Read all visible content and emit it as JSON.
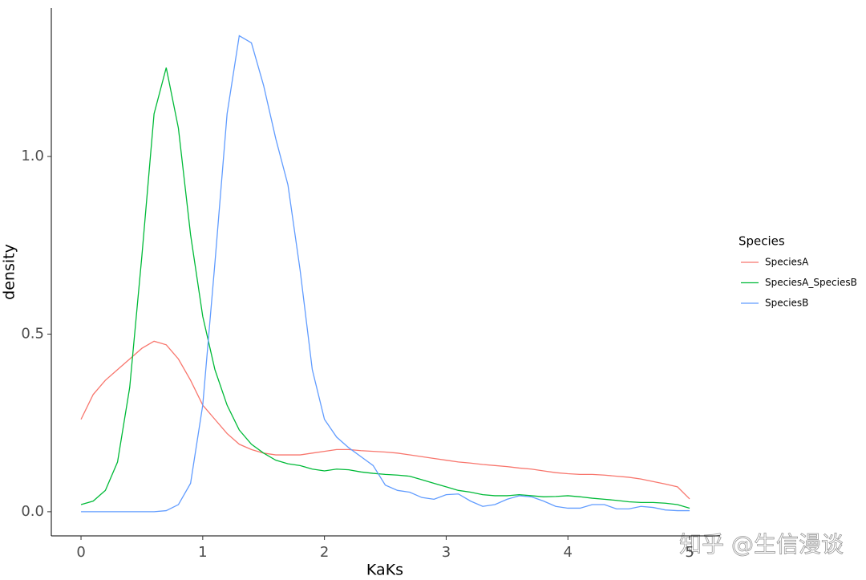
{
  "chart_data": {
    "type": "line",
    "x_label": "KaKs",
    "y_label": "density",
    "legend_title": "Species",
    "watermark": "知乎 @生信漫谈",
    "x": [
      0,
      0.1,
      0.2,
      0.3,
      0.4,
      0.5,
      0.6,
      0.7,
      0.8,
      0.9,
      1,
      1.1,
      1.2,
      1.3,
      1.4,
      1.5,
      1.6,
      1.7,
      1.8,
      1.9,
      2,
      2.1,
      2.2,
      2.3,
      2.4,
      2.5,
      2.6,
      2.7,
      2.8,
      2.9,
      3,
      3.1,
      3.2,
      3.3,
      3.4,
      3.5,
      3.6,
      3.7,
      3.8,
      3.9,
      4,
      4.1,
      4.2,
      4.3,
      4.4,
      4.5,
      4.6,
      4.7,
      4.8,
      4.9,
      5
    ],
    "series": [
      {
        "name": "SpeciesA",
        "color": "#F8766D",
        "values": [
          0.26,
          0.33,
          0.37,
          0.4,
          0.43,
          0.46,
          0.48,
          0.47,
          0.43,
          0.37,
          0.3,
          0.26,
          0.22,
          0.19,
          0.175,
          0.165,
          0.16,
          0.16,
          0.16,
          0.165,
          0.17,
          0.175,
          0.175,
          0.172,
          0.17,
          0.168,
          0.165,
          0.16,
          0.155,
          0.15,
          0.145,
          0.14,
          0.137,
          0.133,
          0.13,
          0.127,
          0.123,
          0.12,
          0.115,
          0.11,
          0.107,
          0.105,
          0.105,
          0.103,
          0.1,
          0.097,
          0.092,
          0.085,
          0.078,
          0.07,
          0.036
        ]
      },
      {
        "name": "SpeciesA_SpeciesB",
        "color": "#00BA38",
        "values": [
          0.02,
          0.03,
          0.06,
          0.14,
          0.35,
          0.72,
          1.12,
          1.25,
          1.08,
          0.78,
          0.55,
          0.4,
          0.3,
          0.23,
          0.19,
          0.165,
          0.145,
          0.135,
          0.13,
          0.12,
          0.115,
          0.12,
          0.118,
          0.112,
          0.108,
          0.105,
          0.103,
          0.1,
          0.09,
          0.08,
          0.07,
          0.06,
          0.055,
          0.048,
          0.045,
          0.045,
          0.048,
          0.045,
          0.042,
          0.043,
          0.045,
          0.042,
          0.038,
          0.035,
          0.032,
          0.028,
          0.026,
          0.026,
          0.024,
          0.02,
          0.01
        ]
      },
      {
        "name": "SpeciesB",
        "color": "#619CFF",
        "values": [
          0,
          0,
          0,
          0,
          0,
          0,
          0,
          0.003,
          0.02,
          0.08,
          0.3,
          0.7,
          1.12,
          1.34,
          1.32,
          1.2,
          1.05,
          0.92,
          0.68,
          0.4,
          0.26,
          0.21,
          0.18,
          0.155,
          0.13,
          0.075,
          0.06,
          0.055,
          0.04,
          0.035,
          0.048,
          0.05,
          0.03,
          0.015,
          0.02,
          0.035,
          0.045,
          0.042,
          0.03,
          0.015,
          0.01,
          0.01,
          0.02,
          0.02,
          0.008,
          0.008,
          0.015,
          0.012,
          0.005,
          0.003,
          0.003
        ]
      }
    ],
    "xlim": [
      -0.244,
      5.25
    ],
    "xticks": [
      0,
      1,
      2,
      3,
      4,
      5
    ],
    "ylim": [
      -0.068,
      1.418
    ],
    "yticks": [
      {
        "value": 0,
        "label": "0.0"
      },
      0.5,
      {
        "value": 1,
        "label": "1.0"
      }
    ]
  }
}
